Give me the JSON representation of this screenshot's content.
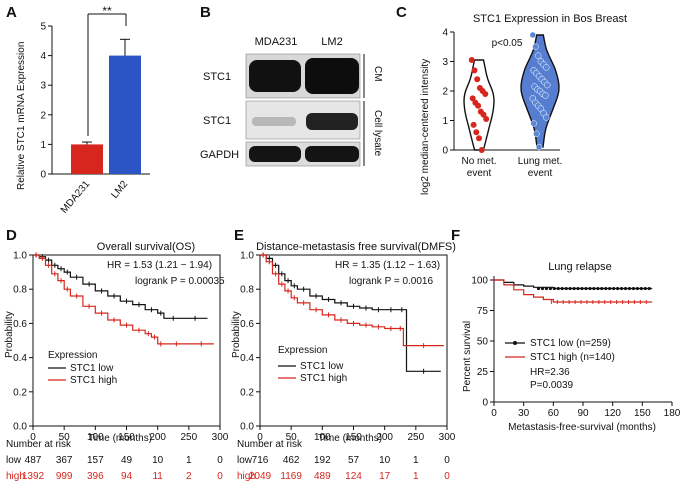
{
  "panel_letters": [
    "A",
    "B",
    "C",
    "D",
    "E",
    "F"
  ],
  "panelA": {
    "ylabel": "Relative STC1 mRNA Expression",
    "significance": "**",
    "yticks": [
      "0",
      "1",
      "2",
      "3",
      "4",
      "5"
    ]
  },
  "panelB": {
    "lanes": [
      "MDA231",
      "LM2"
    ],
    "rows": [
      "STC1",
      "STC1",
      "GAPDH"
    ],
    "side_labels": [
      "CM",
      "Cell lysate"
    ]
  },
  "panelC": {
    "title": "STC1 Expression in Bos Breast",
    "pvalue": "p<0.05",
    "ylabel": "log2 median-centered intensity",
    "yticks": [
      "0",
      "1",
      "2",
      "3",
      "4"
    ],
    "xcats": [
      [
        "No met.",
        "event"
      ],
      [
        "Lung met.",
        "event"
      ]
    ]
  },
  "panelD": {
    "title": "Overall survival(OS)",
    "hr": "HR = 1.53 (1.21 − 1.94)",
    "logrank": "logrank P = 0.00035",
    "ylabel": "Probability",
    "xlabel": "Time (months)",
    "xticks": [
      "0",
      "50",
      "100",
      "150",
      "200",
      "250",
      "300"
    ],
    "yticks": [
      "0.0",
      "0.2",
      "0.4",
      "0.6",
      "0.8",
      "1.0"
    ],
    "legend_title": "Expression",
    "legend": [
      "STC1 low",
      "STC1 high"
    ],
    "risk_title": "Number at risk",
    "risk_low_label": "low",
    "risk_high_label": "high",
    "risk_low": [
      "487",
      "367",
      "157",
      "49",
      "10",
      "1",
      "0"
    ],
    "risk_high": [
      "1392",
      "999",
      "396",
      "94",
      "11",
      "2",
      "0"
    ]
  },
  "panelE": {
    "title": "Distance-metastasis free survival(DMFS)",
    "hr": "HR = 1.35 (1.12 − 1.63)",
    "logrank": "logrank P = 0.0016",
    "ylabel": "Probability",
    "xlabel": "Time (months)",
    "xticks": [
      "0",
      "50",
      "100",
      "150",
      "200",
      "250",
      "300"
    ],
    "yticks": [
      "0.0",
      "0.2",
      "0.4",
      "0.6",
      "0.8",
      "1.0"
    ],
    "legend_title": "Expression",
    "legend": [
      "STC1 low",
      "STC1 high"
    ],
    "risk_title": "Number at risk",
    "risk_low_label": "low",
    "risk_high_label": "high",
    "risk_low": [
      "716",
      "462",
      "192",
      "57",
      "10",
      "1",
      "0"
    ],
    "risk_high": [
      "2049",
      "1169",
      "489",
      "124",
      "17",
      "1",
      "0"
    ]
  },
  "panelF": {
    "title": "Lung relapse",
    "ylabel": "Percent survival",
    "xlabel": "Metastasis-free-survival (months)",
    "xticks": [
      "0",
      "30",
      "60",
      "90",
      "120",
      "150",
      "180"
    ],
    "yticks": [
      "0",
      "25",
      "50",
      "75",
      "100"
    ],
    "legend": [
      "STC1 low (n=259)",
      "STC1 high (n=140)"
    ],
    "hr": "HR=2.36",
    "p": "P=0.0039"
  },
  "colors": {
    "red": "#d7261e",
    "blue": "#2b55c4",
    "black": "#111111",
    "violet_blue": "#3a66c8"
  },
  "chart_data": [
    {
      "type": "bar",
      "categories": [
        "MDA231",
        "LM2"
      ],
      "values": [
        1.0,
        4.0
      ],
      "errors": [
        0.08,
        0.55
      ],
      "ylabel": "Relative STC1 mRNA Expression",
      "ylim": [
        0,
        5
      ]
    },
    {
      "type": "scatter",
      "title": "STC1 Expression in Bos Breast",
      "ylabel": "log2 median-centered intensity",
      "categories": [
        "No met. event",
        "Lung met. event"
      ],
      "ylim": [
        0,
        4
      ],
      "series": [
        {
          "values": [
            3.05,
            2.7,
            2.4,
            2.1,
            2.0,
            1.9,
            1.75,
            1.6,
            1.5,
            1.3,
            1.2,
            1.05,
            0.85,
            0.6,
            0.4,
            0.0
          ]
        },
        {
          "values": [
            3.9,
            3.5,
            3.2,
            3.0,
            2.9,
            2.8,
            2.7,
            2.6,
            2.5,
            2.4,
            2.3,
            2.2,
            2.15,
            2.05,
            2.0,
            1.9,
            1.85,
            1.75,
            1.6,
            1.5,
            1.4,
            1.25,
            1.1,
            0.9,
            0.55,
            0.1
          ]
        }
      ]
    },
    {
      "type": "line",
      "title": "Overall survival(OS)",
      "xlabel": "Time (months)",
      "ylabel": "Probability",
      "xlim": [
        0,
        300
      ],
      "ylim": [
        0,
        1
      ],
      "series": [
        {
          "name": "STC1 low",
          "x": [
            0,
            10,
            20,
            30,
            40,
            50,
            60,
            80,
            100,
            120,
            140,
            160,
            180,
            200,
            210,
            240,
            280
          ],
          "y": [
            1,
            0.99,
            0.97,
            0.94,
            0.92,
            0.9,
            0.87,
            0.83,
            0.79,
            0.76,
            0.73,
            0.71,
            0.68,
            0.66,
            0.63,
            0.63,
            0.63
          ]
        },
        {
          "name": "STC1 high",
          "x": [
            0,
            10,
            20,
            30,
            40,
            50,
            60,
            80,
            100,
            120,
            140,
            160,
            180,
            190,
            200,
            210,
            250,
            290
          ],
          "y": [
            1,
            0.98,
            0.94,
            0.89,
            0.85,
            0.8,
            0.76,
            0.7,
            0.66,
            0.62,
            0.59,
            0.56,
            0.54,
            0.52,
            0.48,
            0.48,
            0.48,
            0.48
          ]
        }
      ]
    },
    {
      "type": "line",
      "title": "Distance-metastasis free survival(DMFS)",
      "xlabel": "Time (months)",
      "ylabel": "Probability",
      "xlim": [
        0,
        300
      ],
      "ylim": [
        0,
        1
      ],
      "series": [
        {
          "name": "STC1 low",
          "x": [
            0,
            10,
            20,
            30,
            40,
            50,
            60,
            80,
            100,
            120,
            140,
            160,
            180,
            200,
            220,
            235,
            290
          ],
          "y": [
            1,
            0.98,
            0.94,
            0.89,
            0.85,
            0.82,
            0.8,
            0.76,
            0.74,
            0.72,
            0.7,
            0.69,
            0.68,
            0.68,
            0.68,
            0.32,
            0.32
          ]
        },
        {
          "name": "STC1 high",
          "x": [
            0,
            10,
            20,
            30,
            40,
            50,
            60,
            80,
            100,
            120,
            140,
            160,
            180,
            200,
            220,
            230,
            295
          ],
          "y": [
            1,
            0.96,
            0.89,
            0.83,
            0.79,
            0.75,
            0.72,
            0.68,
            0.65,
            0.62,
            0.6,
            0.59,
            0.58,
            0.57,
            0.57,
            0.47,
            0.47
          ]
        }
      ]
    },
    {
      "type": "line",
      "title": "Lung relapse",
      "xlabel": "Metastasis-free-survival (months)",
      "ylabel": "Percent survival",
      "xlim": [
        0,
        180
      ],
      "ylim": [
        0,
        100
      ],
      "series": [
        {
          "name": "STC1 low (n=259)",
          "x": [
            0,
            10,
            20,
            30,
            40,
            60,
            80,
            100,
            130,
            160
          ],
          "y": [
            100,
            98,
            96,
            95,
            94,
            93,
            93,
            93,
            93,
            93
          ]
        },
        {
          "name": "STC1 high (n=140)",
          "x": [
            0,
            10,
            20,
            30,
            40,
            50,
            60,
            90,
            120,
            160
          ],
          "y": [
            100,
            96,
            92,
            88,
            86,
            84,
            82,
            82,
            82,
            82
          ]
        }
      ]
    }
  ]
}
